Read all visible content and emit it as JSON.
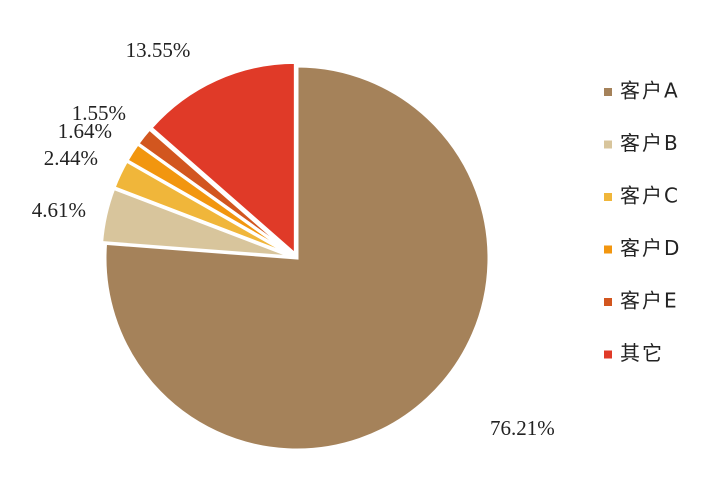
{
  "chart_data": {
    "type": "pie",
    "categories": [
      "客户A",
      "客户B",
      "客户C",
      "客户D",
      "客户E",
      "其它"
    ],
    "values": [
      76.21,
      4.61,
      2.44,
      1.64,
      1.55,
      13.55
    ],
    "value_labels": [
      "76.21%",
      "4.61%",
      "2.44%",
      "1.64%",
      "1.55%",
      "13.55%"
    ],
    "colors": [
      "#a5825a",
      "#d8c59c",
      "#f0b63a",
      "#f2960f",
      "#d2561f",
      "#e03a28"
    ],
    "legend": "right"
  }
}
